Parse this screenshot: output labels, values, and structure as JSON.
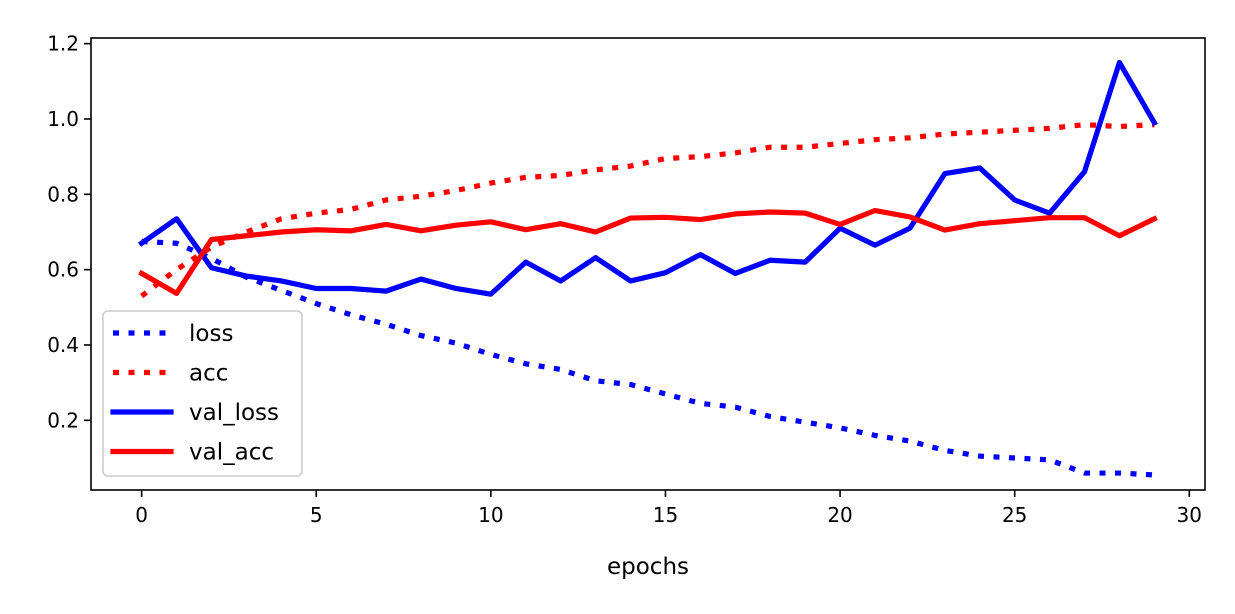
{
  "chart_data": {
    "type": "line",
    "title": "",
    "xlabel": "epochs",
    "ylabel": "",
    "xlim": [
      -1.45,
      30.45
    ],
    "ylim": [
      0.015,
      1.215
    ],
    "xticks": [
      0,
      5,
      10,
      15,
      20,
      25,
      30
    ],
    "xtick_labels": [
      "0",
      "5",
      "10",
      "15",
      "20",
      "25",
      "30"
    ],
    "yticks": [
      0.2,
      0.4,
      0.6,
      0.8,
      1.0,
      1.2
    ],
    "ytick_labels": [
      "0.2",
      "0.4",
      "0.6",
      "0.8",
      "1.0",
      "1.2"
    ],
    "grid": false,
    "legend_position": "lower-left",
    "x": [
      0,
      1,
      2,
      3,
      4,
      5,
      6,
      7,
      8,
      9,
      10,
      11,
      12,
      13,
      14,
      15,
      16,
      17,
      18,
      19,
      20,
      21,
      22,
      23,
      24,
      25,
      26,
      27,
      28,
      29
    ],
    "series": [
      {
        "name": "loss",
        "color": "#0000ff",
        "style": "dotted",
        "values": [
          0.675,
          0.67,
          0.63,
          0.58,
          0.545,
          0.51,
          0.48,
          0.455,
          0.425,
          0.405,
          0.375,
          0.35,
          0.335,
          0.305,
          0.295,
          0.27,
          0.245,
          0.235,
          0.21,
          0.195,
          0.18,
          0.16,
          0.145,
          0.12,
          0.105,
          0.1,
          0.095,
          0.06,
          0.06,
          0.055
        ]
      },
      {
        "name": "acc",
        "color": "#ff0000",
        "style": "dotted",
        "values": [
          0.53,
          0.6,
          0.66,
          0.7,
          0.735,
          0.75,
          0.76,
          0.785,
          0.795,
          0.81,
          0.83,
          0.845,
          0.85,
          0.865,
          0.875,
          0.895,
          0.9,
          0.91,
          0.925,
          0.925,
          0.935,
          0.945,
          0.95,
          0.96,
          0.965,
          0.97,
          0.975,
          0.985,
          0.98,
          0.985
        ]
      },
      {
        "name": "val_loss",
        "color": "#0000ff",
        "style": "solid",
        "values": [
          0.67,
          0.735,
          0.605,
          0.583,
          0.57,
          0.55,
          0.55,
          0.543,
          0.575,
          0.55,
          0.535,
          0.62,
          0.57,
          0.632,
          0.57,
          0.592,
          0.64,
          0.59,
          0.625,
          0.62,
          0.71,
          0.665,
          0.71,
          0.855,
          0.87,
          0.785,
          0.75,
          0.86,
          1.15,
          0.99
        ]
      },
      {
        "name": "val_acc",
        "color": "#ff0000",
        "style": "solid",
        "values": [
          0.59,
          0.537,
          0.68,
          0.69,
          0.7,
          0.706,
          0.703,
          0.72,
          0.703,
          0.718,
          0.727,
          0.706,
          0.722,
          0.7,
          0.737,
          0.739,
          0.733,
          0.748,
          0.753,
          0.75,
          0.72,
          0.757,
          0.74,
          0.705,
          0.722,
          0.73,
          0.738,
          0.738,
          0.69,
          0.735
        ]
      }
    ]
  }
}
